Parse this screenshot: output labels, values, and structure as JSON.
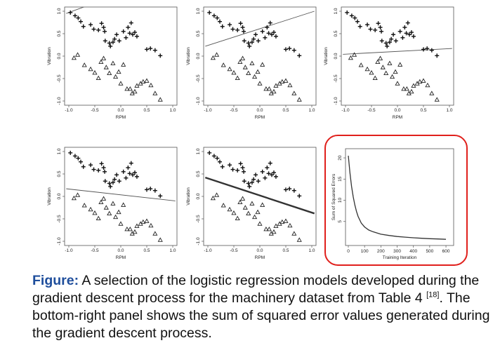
{
  "caption": {
    "lead": "Figure:",
    "text_before_ref": " A selection of the logistic regression models developed during the gradient descent process for the machinery dataset from Table 4 ",
    "ref": "[18]",
    "text_after_ref": ". The bottom-right panel shows the sum of squared error values generated during the gradient descent process."
  },
  "highlight_color": "#e0201c",
  "chart_data": [
    {
      "type": "scatter",
      "xlabel": "RPM",
      "ylabel": "Vibration",
      "xlim": [
        -1,
        1
      ],
      "ylim": [
        -1,
        1
      ],
      "x_ticks": [
        "-1.0",
        "-0.5",
        "0.0",
        "0.5",
        "1.0"
      ],
      "y_ticks": [
        "-1.0",
        "-0.5",
        "0.0",
        "0.5",
        "1.0"
      ],
      "decision_line": {
        "x": [
          -1.05,
          -0.65
        ],
        "y": [
          0.95,
          1.12
        ],
        "weight": "thin"
      }
    },
    {
      "type": "scatter",
      "xlabel": "RPM",
      "ylabel": "Vibration",
      "xlim": [
        -1,
        1
      ],
      "ylim": [
        -1,
        1
      ],
      "x_ticks": [
        "-1.0",
        "-0.5",
        "0.0",
        "0.5",
        "1.0"
      ],
      "y_ticks": [
        "-1.0",
        "-0.5",
        "0.0",
        "0.5",
        "1.0"
      ],
      "decision_line": {
        "x": [
          -1.05,
          1.05
        ],
        "y": [
          0.22,
          1.0
        ],
        "weight": "thin"
      }
    },
    {
      "type": "scatter",
      "xlabel": "RPM",
      "ylabel": "Vibration",
      "xlim": [
        -1,
        1
      ],
      "ylim": [
        -1,
        1
      ],
      "x_ticks": [
        "-1.0",
        "-0.5",
        "0.0",
        "0.5",
        "1.0"
      ],
      "y_ticks": [
        "-1.0",
        "-0.5",
        "0.0",
        "0.5",
        "1.0"
      ],
      "decision_line": {
        "x": [
          -1.05,
          1.05
        ],
        "y": [
          0.04,
          0.17
        ],
        "weight": "thin"
      }
    },
    {
      "type": "scatter",
      "xlabel": "RPM",
      "ylabel": "Vibration",
      "xlim": [
        -1,
        1
      ],
      "ylim": [
        -1,
        1
      ],
      "x_ticks": [
        "-1.0",
        "-0.5",
        "0.0",
        "0.5",
        "1.0"
      ],
      "y_ticks": [
        "-1.0",
        "-0.5",
        "0.0",
        "0.5",
        "1.0"
      ],
      "decision_line": {
        "x": [
          -1.05,
          1.05
        ],
        "y": [
          0.17,
          -0.1
        ],
        "weight": "thin"
      }
    },
    {
      "type": "scatter",
      "xlabel": "RPM",
      "ylabel": "Vibration",
      "xlim": [
        -1,
        1
      ],
      "ylim": [
        -1,
        1
      ],
      "x_ticks": [
        "-1.0",
        "-0.5",
        "0.0",
        "0.5",
        "1.0"
      ],
      "y_ticks": [
        "-1.0",
        "-0.5",
        "0.0",
        "0.5",
        "1.0"
      ],
      "decision_line": {
        "x": [
          -1.05,
          1.05
        ],
        "y": [
          0.42,
          -0.38
        ],
        "weight": "thick"
      }
    },
    {
      "type": "line",
      "xlabel": "Training Iteration",
      "ylabel": "Sum of Squared Errors",
      "xlim": [
        0,
        630
      ],
      "ylim": [
        0,
        21.5
      ],
      "x_ticks": [
        "0",
        "100",
        "200",
        "300",
        "400",
        "500",
        "600"
      ],
      "y_ticks": [
        "5",
        "10",
        "15",
        "20"
      ],
      "x": [
        0,
        10,
        20,
        30,
        40,
        50,
        60,
        80,
        100,
        125,
        150,
        200,
        250,
        300,
        350,
        400,
        450,
        500,
        550,
        600
      ],
      "y": [
        20.5,
        16.5,
        13.3,
        10.8,
        8.9,
        7.4,
        6.2,
        4.6,
        3.7,
        3.0,
        2.6,
        2.0,
        1.7,
        1.45,
        1.3,
        1.15,
        1.05,
        0.95,
        0.87,
        0.8
      ]
    }
  ],
  "scatter_points": {
    "plus": {
      "x": [
        -0.97,
        -0.88,
        -0.82,
        -0.77,
        -0.72,
        -0.58,
        -0.52,
        -0.43,
        -0.37,
        -0.33,
        -0.31,
        -0.3,
        -0.22,
        -0.2,
        -0.15,
        -0.12,
        -0.08,
        -0.03,
        0.05,
        0.1,
        0.14,
        0.17,
        0.2,
        0.23,
        0.27,
        0.31,
        0.5,
        0.57,
        0.66,
        0.76
      ],
      "y": [
        0.97,
        0.9,
        0.85,
        0.77,
        0.66,
        0.7,
        0.6,
        0.58,
        0.73,
        0.64,
        0.55,
        0.34,
        0.29,
        0.22,
        0.31,
        0.38,
        0.48,
        0.34,
        0.55,
        0.41,
        0.64,
        0.51,
        0.74,
        0.48,
        0.53,
        0.44,
        0.15,
        0.17,
        0.13,
        0.01
      ]
    },
    "triangle": {
      "x": [
        -0.9,
        -0.83,
        -0.7,
        -0.58,
        -0.5,
        -0.43,
        -0.38,
        -0.33,
        -0.28,
        -0.22,
        -0.15,
        -0.1,
        -0.04,
        0.0,
        0.05,
        0.12,
        0.18,
        0.22,
        0.27,
        0.31,
        0.38,
        0.43,
        0.5,
        0.58,
        0.66,
        0.76
      ],
      "y": [
        -0.04,
        0.03,
        -0.2,
        -0.29,
        -0.37,
        -0.49,
        -0.13,
        -0.05,
        -0.25,
        -0.38,
        -0.16,
        -0.46,
        -0.35,
        -0.61,
        -0.19,
        -0.73,
        -0.73,
        -0.83,
        -0.79,
        -0.66,
        -0.61,
        -0.57,
        -0.55,
        -0.65,
        -0.83,
        -0.97
      ]
    }
  }
}
